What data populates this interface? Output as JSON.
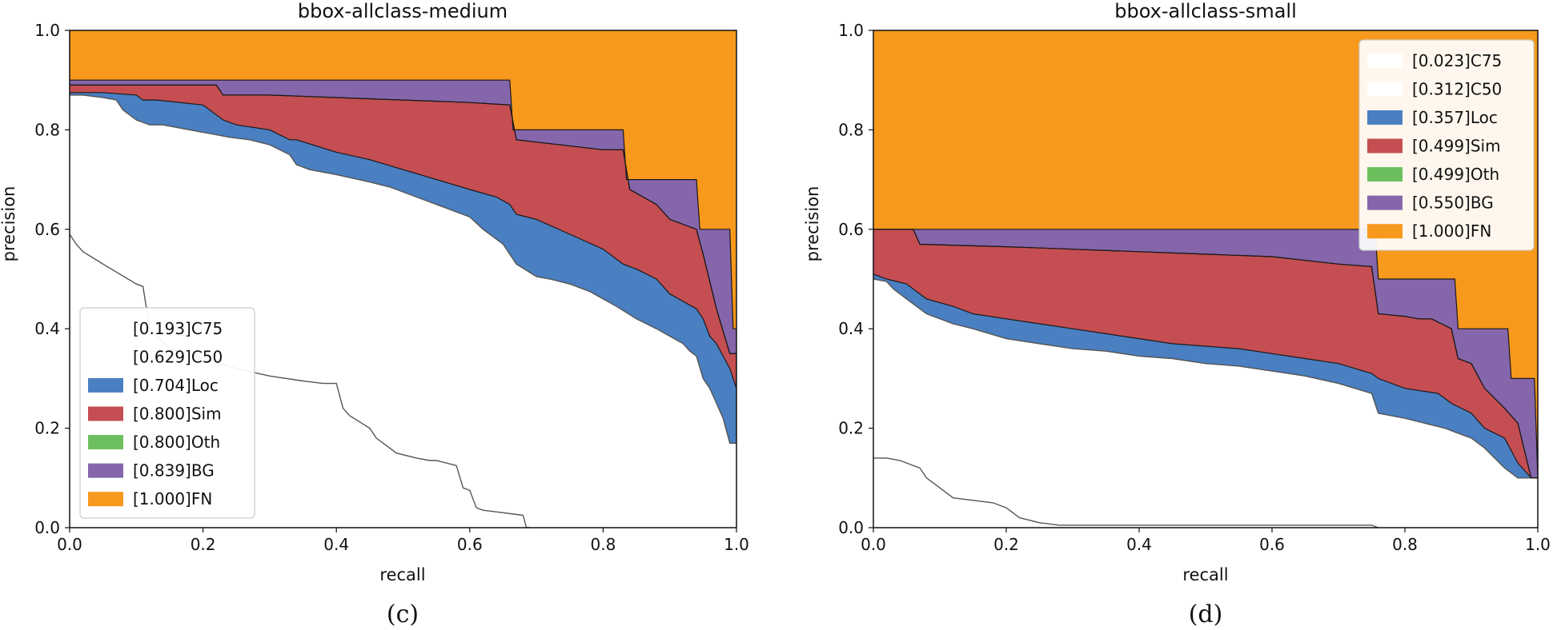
{
  "figure": {
    "captions": [
      "(c)",
      "(d)"
    ]
  },
  "chart_data": [
    {
      "type": "area",
      "subtype": "stacked-precision-recall-error-analysis",
      "title": "bbox-allclass-medium",
      "xlabel": "recall",
      "ylabel": "precision",
      "xlim": [
        0.0,
        1.0
      ],
      "ylim": [
        0.0,
        1.0
      ],
      "xticks": [
        "0.0",
        "0.2",
        "0.4",
        "0.6",
        "0.8",
        "1.0"
      ],
      "yticks": [
        "0.0",
        "0.2",
        "0.4",
        "0.6",
        "0.8",
        "1.0"
      ],
      "legend_position": "lower-left",
      "caption": "(c)",
      "series": [
        {
          "name": "C75",
          "label": "[0.193]C75",
          "ap": 0.193,
          "color": "#ffffff",
          "x": [
            0.0,
            0.01,
            0.02,
            0.05,
            0.1,
            0.11,
            0.12,
            0.15,
            0.2,
            0.25,
            0.3,
            0.35,
            0.38,
            0.4,
            0.41,
            0.42,
            0.45,
            0.46,
            0.49,
            0.52,
            0.54,
            0.55,
            0.58,
            0.59,
            0.6,
            0.61,
            0.62,
            0.65,
            0.68,
            0.685,
            0.69
          ],
          "y": [
            0.59,
            0.57,
            0.555,
            0.53,
            0.49,
            0.485,
            0.4,
            0.36,
            0.34,
            0.32,
            0.305,
            0.295,
            0.29,
            0.29,
            0.24,
            0.225,
            0.2,
            0.18,
            0.15,
            0.14,
            0.135,
            0.135,
            0.125,
            0.08,
            0.075,
            0.04,
            0.035,
            0.03,
            0.025,
            0.0,
            0.0
          ]
        },
        {
          "name": "C50",
          "label": "[0.629]C50",
          "ap": 0.629,
          "color": "#ffffff",
          "x": [
            0.0,
            0.02,
            0.05,
            0.07,
            0.08,
            0.1,
            0.12,
            0.14,
            0.18,
            0.22,
            0.24,
            0.27,
            0.3,
            0.33,
            0.34,
            0.36,
            0.4,
            0.45,
            0.48,
            0.5,
            0.52,
            0.55,
            0.6,
            0.62,
            0.65,
            0.66,
            0.67,
            0.7,
            0.72,
            0.75,
            0.78,
            0.8,
            0.82,
            0.85,
            0.88,
            0.9,
            0.92,
            0.93,
            0.94,
            0.95,
            0.96,
            0.97,
            0.98,
            0.99,
            1.0
          ],
          "y": [
            0.87,
            0.87,
            0.865,
            0.86,
            0.84,
            0.82,
            0.81,
            0.81,
            0.8,
            0.79,
            0.785,
            0.78,
            0.77,
            0.75,
            0.73,
            0.72,
            0.71,
            0.695,
            0.685,
            0.675,
            0.665,
            0.65,
            0.625,
            0.6,
            0.57,
            0.55,
            0.53,
            0.505,
            0.5,
            0.49,
            0.475,
            0.46,
            0.445,
            0.42,
            0.4,
            0.385,
            0.37,
            0.355,
            0.345,
            0.3,
            0.28,
            0.25,
            0.22,
            0.17,
            0.17
          ]
        },
        {
          "name": "Loc",
          "label": "[0.704]Loc",
          "ap": 0.704,
          "color": "#4a7fc1",
          "x": [
            0.0,
            0.05,
            0.1,
            0.11,
            0.12,
            0.13,
            0.2,
            0.22,
            0.23,
            0.25,
            0.3,
            0.33,
            0.34,
            0.4,
            0.45,
            0.5,
            0.55,
            0.6,
            0.64,
            0.66,
            0.67,
            0.7,
            0.75,
            0.8,
            0.83,
            0.85,
            0.88,
            0.9,
            0.92,
            0.94,
            0.95,
            0.96,
            0.97,
            0.98,
            0.99,
            1.0
          ],
          "y": [
            0.875,
            0.875,
            0.87,
            0.86,
            0.86,
            0.86,
            0.85,
            0.83,
            0.82,
            0.81,
            0.8,
            0.78,
            0.78,
            0.755,
            0.74,
            0.72,
            0.7,
            0.68,
            0.665,
            0.65,
            0.63,
            0.62,
            0.59,
            0.56,
            0.53,
            0.52,
            0.5,
            0.47,
            0.455,
            0.44,
            0.42,
            0.385,
            0.37,
            0.345,
            0.32,
            0.28
          ]
        },
        {
          "name": "Sim",
          "label": "[0.800]Sim",
          "ap": 0.8,
          "color": "#c44e52",
          "x": [
            0.0,
            0.22,
            0.23,
            0.3,
            0.4,
            0.5,
            0.6,
            0.66,
            0.67,
            0.8,
            0.83,
            0.84,
            0.88,
            0.9,
            0.94,
            0.95,
            0.97,
            0.99,
            1.0
          ],
          "y": [
            0.89,
            0.89,
            0.87,
            0.87,
            0.865,
            0.86,
            0.855,
            0.85,
            0.78,
            0.76,
            0.76,
            0.68,
            0.65,
            0.62,
            0.6,
            0.55,
            0.44,
            0.35,
            0.35
          ]
        },
        {
          "name": "Oth",
          "label": "[0.800]Oth",
          "ap": 0.8,
          "color": "#6dbf5e",
          "x": [
            0.0,
            0.22,
            0.23,
            0.3,
            0.4,
            0.5,
            0.6,
            0.66,
            0.67,
            0.8,
            0.83,
            0.84,
            0.88,
            0.9,
            0.94,
            0.95,
            0.97,
            0.99,
            1.0
          ],
          "y": [
            0.89,
            0.89,
            0.87,
            0.87,
            0.865,
            0.86,
            0.855,
            0.85,
            0.78,
            0.76,
            0.76,
            0.68,
            0.65,
            0.62,
            0.6,
            0.55,
            0.44,
            0.35,
            0.35
          ]
        },
        {
          "name": "BG",
          "label": "[0.839]BG",
          "ap": 0.839,
          "color": "#8566ab",
          "x": [
            0.0,
            0.1,
            0.2,
            0.3,
            0.4,
            0.5,
            0.66,
            0.665,
            0.83,
            0.835,
            0.94,
            0.945,
            0.99,
            0.995,
            1.0
          ],
          "y": [
            0.9,
            0.9,
            0.9,
            0.9,
            0.9,
            0.9,
            0.9,
            0.8,
            0.8,
            0.7,
            0.7,
            0.6,
            0.6,
            0.4,
            0.4
          ]
        },
        {
          "name": "FN",
          "label": "[1.000]FN",
          "ap": 1.0,
          "color": "#f7991d",
          "x": [
            0.0,
            1.0
          ],
          "y": [
            1.0,
            1.0
          ]
        }
      ]
    },
    {
      "type": "area",
      "subtype": "stacked-precision-recall-error-analysis",
      "title": "bbox-allclass-small",
      "xlabel": "recall",
      "ylabel": "precision",
      "xlim": [
        0.0,
        1.0
      ],
      "ylim": [
        0.0,
        1.0
      ],
      "xticks": [
        "0.0",
        "0.2",
        "0.4",
        "0.6",
        "0.8",
        "1.0"
      ],
      "yticks": [
        "0.0",
        "0.2",
        "0.4",
        "0.6",
        "0.8",
        "1.0"
      ],
      "legend_position": "upper-right",
      "caption": "(d)",
      "series": [
        {
          "name": "C75",
          "label": "[0.023]C75",
          "ap": 0.023,
          "color": "#ffffff",
          "x": [
            0.0,
            0.02,
            0.04,
            0.05,
            0.07,
            0.08,
            0.1,
            0.12,
            0.15,
            0.18,
            0.2,
            0.22,
            0.25,
            0.28,
            0.3,
            0.5,
            0.75,
            0.76
          ],
          "y": [
            0.14,
            0.14,
            0.135,
            0.13,
            0.12,
            0.1,
            0.08,
            0.06,
            0.055,
            0.05,
            0.04,
            0.02,
            0.01,
            0.005,
            0.005,
            0.005,
            0.005,
            0.0
          ]
        },
        {
          "name": "C50",
          "label": "[0.312]C50",
          "ap": 0.312,
          "color": "#ffffff",
          "x": [
            0.0,
            0.02,
            0.03,
            0.05,
            0.08,
            0.12,
            0.15,
            0.2,
            0.25,
            0.3,
            0.35,
            0.4,
            0.45,
            0.5,
            0.55,
            0.6,
            0.65,
            0.7,
            0.75,
            0.76,
            0.8,
            0.83,
            0.86,
            0.88,
            0.9,
            0.92,
            0.95,
            0.97,
            0.99,
            1.0
          ],
          "y": [
            0.5,
            0.495,
            0.48,
            0.46,
            0.43,
            0.41,
            0.4,
            0.38,
            0.37,
            0.36,
            0.355,
            0.345,
            0.34,
            0.33,
            0.325,
            0.315,
            0.305,
            0.29,
            0.27,
            0.23,
            0.22,
            0.21,
            0.2,
            0.19,
            0.18,
            0.16,
            0.12,
            0.1,
            0.1,
            0.1
          ]
        },
        {
          "name": "Loc",
          "label": "[0.357]Loc",
          "ap": 0.357,
          "color": "#4a7fc1",
          "x": [
            0.0,
            0.02,
            0.05,
            0.08,
            0.12,
            0.15,
            0.2,
            0.25,
            0.3,
            0.35,
            0.4,
            0.45,
            0.5,
            0.55,
            0.6,
            0.65,
            0.7,
            0.75,
            0.76,
            0.8,
            0.85,
            0.87,
            0.9,
            0.92,
            0.95,
            0.97,
            0.99,
            1.0
          ],
          "y": [
            0.51,
            0.5,
            0.49,
            0.46,
            0.445,
            0.43,
            0.42,
            0.41,
            0.4,
            0.39,
            0.38,
            0.37,
            0.365,
            0.36,
            0.35,
            0.34,
            0.33,
            0.31,
            0.3,
            0.28,
            0.27,
            0.25,
            0.23,
            0.2,
            0.18,
            0.13,
            0.1,
            0.1
          ]
        },
        {
          "name": "Sim",
          "label": "[0.499]Sim",
          "ap": 0.499,
          "color": "#c44e52",
          "x": [
            0.0,
            0.06,
            0.07,
            0.2,
            0.3,
            0.4,
            0.5,
            0.6,
            0.7,
            0.75,
            0.76,
            0.8,
            0.82,
            0.84,
            0.87,
            0.88,
            0.9,
            0.92,
            0.95,
            0.97,
            0.99,
            1.0
          ],
          "y": [
            0.6,
            0.6,
            0.57,
            0.565,
            0.56,
            0.555,
            0.55,
            0.545,
            0.53,
            0.525,
            0.43,
            0.425,
            0.42,
            0.42,
            0.4,
            0.34,
            0.33,
            0.28,
            0.24,
            0.21,
            0.1,
            0.1
          ]
        },
        {
          "name": "Oth",
          "label": "[0.499]Oth",
          "ap": 0.499,
          "color": "#6dbf5e",
          "x": [
            0.0,
            0.06,
            0.07,
            0.2,
            0.3,
            0.4,
            0.5,
            0.6,
            0.7,
            0.75,
            0.76,
            0.8,
            0.82,
            0.84,
            0.87,
            0.88,
            0.9,
            0.92,
            0.95,
            0.97,
            0.99,
            1.0
          ],
          "y": [
            0.6,
            0.6,
            0.57,
            0.565,
            0.56,
            0.555,
            0.55,
            0.545,
            0.53,
            0.525,
            0.43,
            0.425,
            0.42,
            0.42,
            0.4,
            0.34,
            0.33,
            0.28,
            0.24,
            0.21,
            0.1,
            0.1
          ]
        },
        {
          "name": "BG",
          "label": "[0.550]BG",
          "ap": 0.55,
          "color": "#8566ab",
          "x": [
            0.0,
            0.755,
            0.76,
            0.875,
            0.88,
            0.955,
            0.96,
            0.995,
            1.0
          ],
          "y": [
            0.6,
            0.6,
            0.5,
            0.5,
            0.4,
            0.4,
            0.3,
            0.3,
            0.1
          ]
        },
        {
          "name": "FN",
          "label": "[1.000]FN",
          "ap": 1.0,
          "color": "#f7991d",
          "x": [
            0.0,
            1.0
          ],
          "y": [
            1.0,
            1.0
          ]
        }
      ]
    }
  ]
}
